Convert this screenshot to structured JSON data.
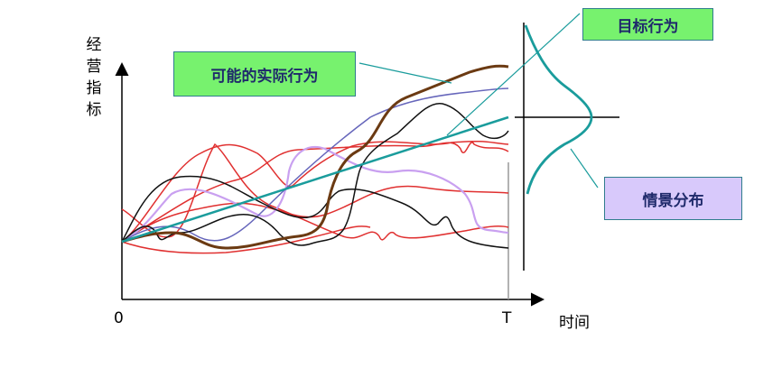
{
  "diagram": {
    "y_axis_label": "经营指标",
    "x_axis_label": "时间",
    "origin_label": "0",
    "end_label": "T",
    "labels": {
      "possible_actual": "可能的实际行为",
      "target": "目标行为",
      "scenario": "情景分布"
    },
    "colors": {
      "target_line": "#1a9c9c",
      "thick_path": "#6b3a12",
      "red_paths": "#e03030",
      "black_paths": "#111111",
      "blue_path": "#6666bb",
      "lavender_path": "#c9a0f0",
      "green_box": "#77f26e",
      "purple_box": "#d8c9fb",
      "label_text": "#1f2a6b"
    }
  }
}
